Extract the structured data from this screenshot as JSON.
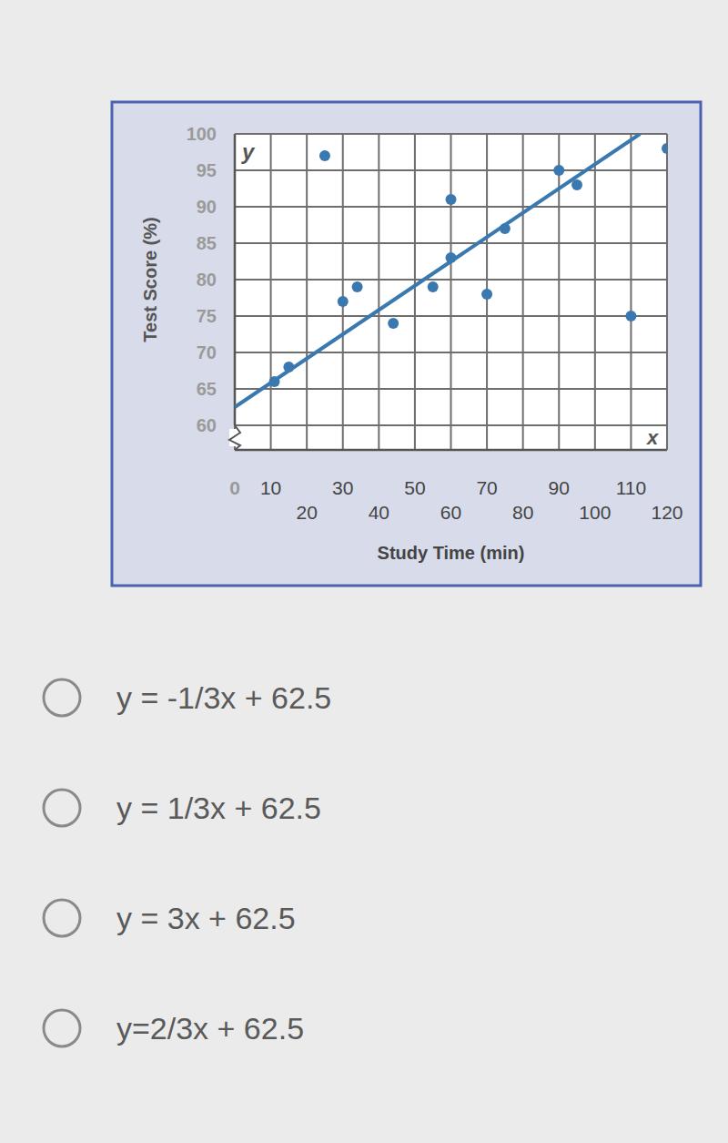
{
  "chart_data": {
    "type": "scatter",
    "x_label": "Study Time (min)",
    "y_label": "Test Score (%)",
    "annotations": [
      "y",
      "x"
    ],
    "xlim": [
      0,
      120
    ],
    "xticks": [
      0,
      10,
      20,
      30,
      40,
      50,
      60,
      70,
      80,
      90,
      100,
      110,
      120
    ],
    "ylim": [
      60,
      100
    ],
    "yticks": [
      60,
      65,
      70,
      75,
      80,
      85,
      90,
      95,
      100
    ],
    "grid": true,
    "series": [
      {
        "type": "scatter",
        "color": "#3a78b0",
        "marker": "circle",
        "x": [
          11,
          15,
          25,
          30,
          34,
          44,
          55,
          60,
          60,
          70,
          75,
          90,
          95,
          110,
          120
        ],
        "values": [
          66,
          68,
          97,
          77,
          79,
          74,
          79,
          91,
          83,
          78,
          87,
          95,
          93,
          75,
          98
        ]
      },
      {
        "type": "line",
        "color": "#3a78b0",
        "line_style": "solid",
        "x": [
          0,
          112.5
        ],
        "values": [
          62.5,
          100
        ]
      }
    ]
  },
  "choices": [
    "y = -1/3x + 62.5",
    "y = 1/3x + 62.5",
    "y = 3x + 62.5",
    "y=2/3x + 62.5"
  ]
}
